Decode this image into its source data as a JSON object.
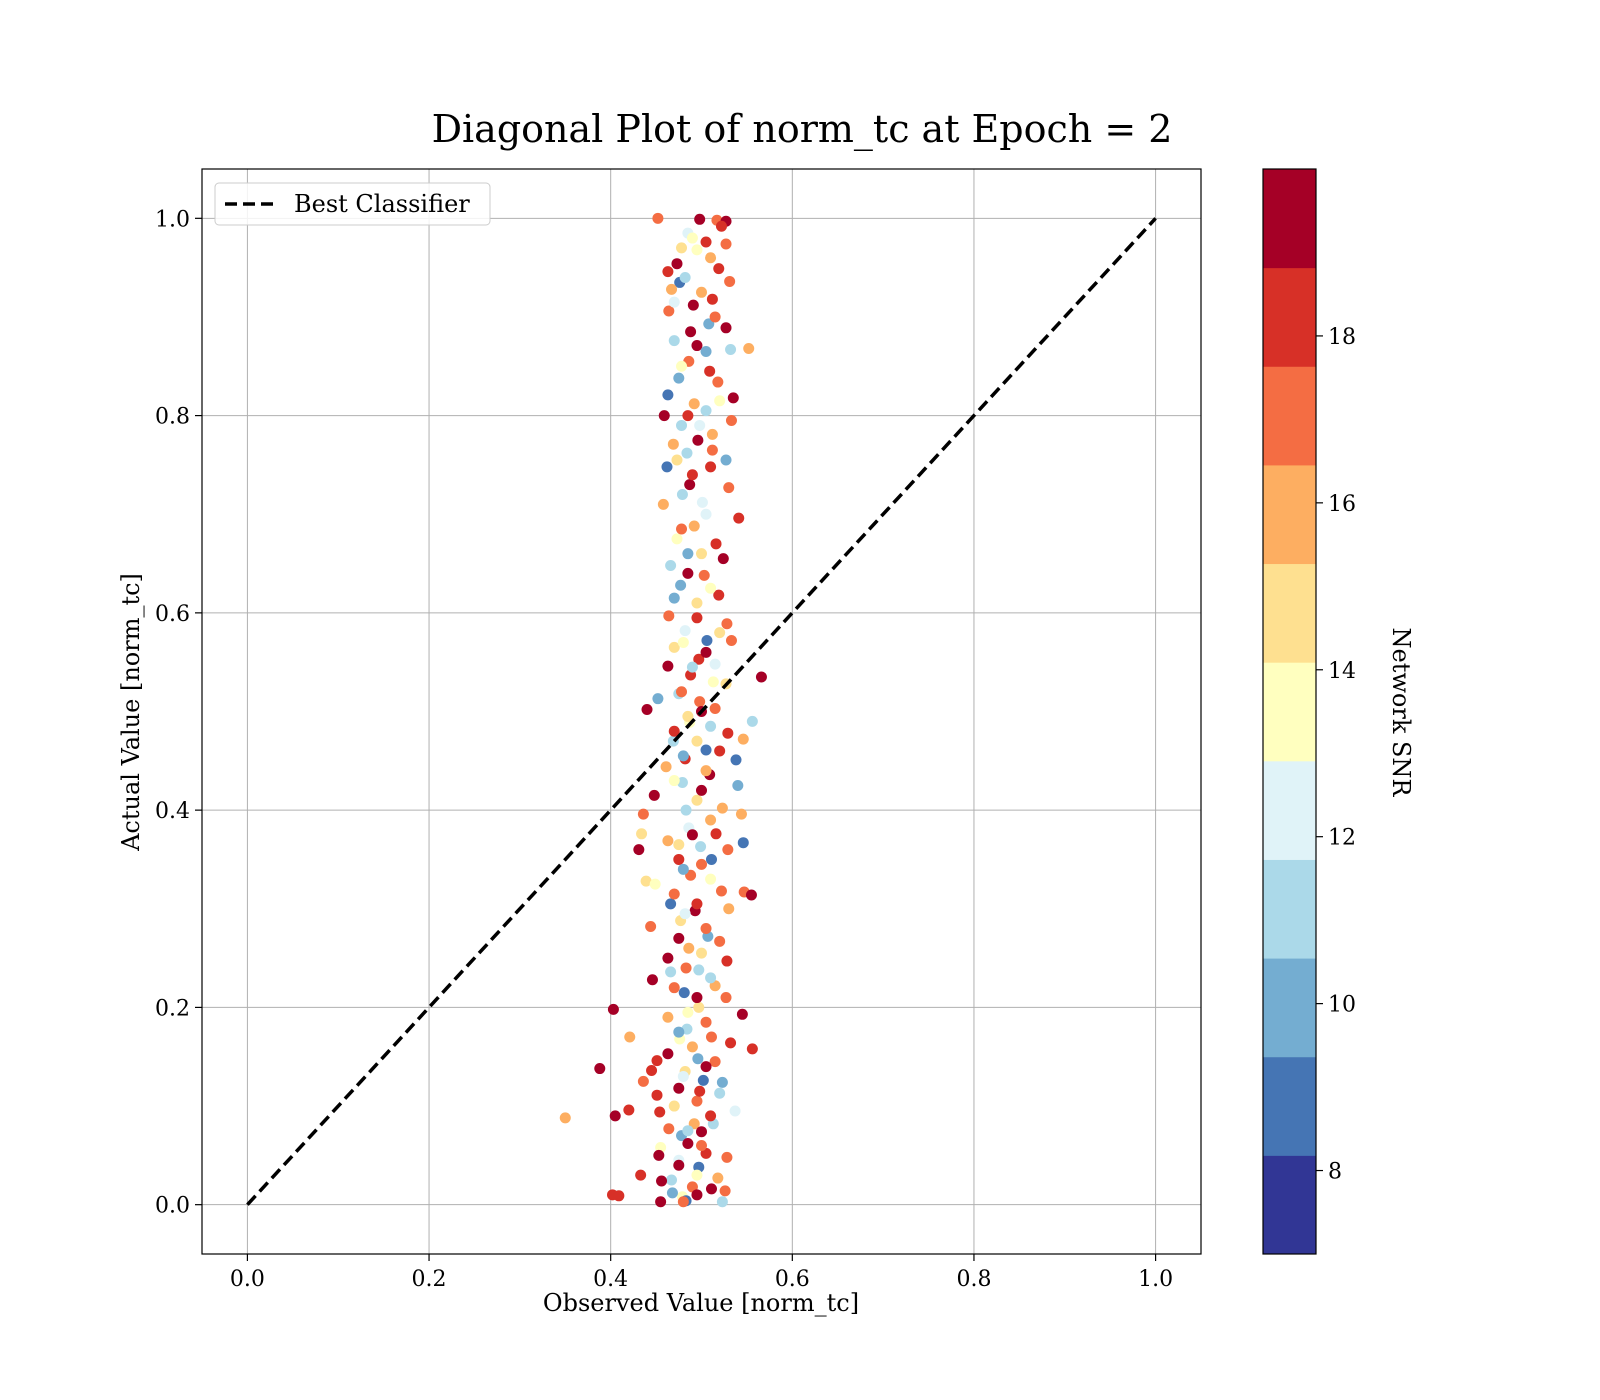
{
  "chart_data": {
    "type": "scatter",
    "title": "Diagonal Plot of norm_tc at Epoch = 2",
    "xlabel": "Observed Value [norm_tc]",
    "ylabel": "Actual Value [norm_tc]",
    "xlim": [
      -0.05,
      1.05
    ],
    "ylim": [
      -0.05,
      1.05
    ],
    "xticks": [
      "0.0",
      "0.2",
      "0.4",
      "0.6",
      "0.8",
      "1.0"
    ],
    "yticks": [
      "0.0",
      "0.2",
      "0.4",
      "0.6",
      "0.8",
      "1.0"
    ],
    "xtick_values": [
      0,
      0.2,
      0.4,
      0.6,
      0.8,
      1.0
    ],
    "ytick_values": [
      0,
      0.2,
      0.4,
      0.6,
      0.8,
      1.0
    ],
    "grid": true,
    "legend": {
      "placement": "top-left",
      "entries": [
        {
          "label": "Best Classifier",
          "style": "dashed",
          "color": "#000000"
        }
      ]
    },
    "reference_line": {
      "x": [
        0,
        1
      ],
      "y": [
        0,
        1
      ]
    },
    "colorbar": {
      "label": "Network SNR",
      "range": [
        7,
        20
      ],
      "ticks": [
        "8",
        "10",
        "12",
        "14",
        "16",
        "18"
      ],
      "tick_values": [
        8,
        10,
        12,
        14,
        16,
        18
      ],
      "colors": [
        "#313695",
        "#4575b4",
        "#74add1",
        "#abd9e9",
        "#e0f3f8",
        "#ffffbf",
        "#fee090",
        "#fdae61",
        "#f46d43",
        "#d73027",
        "#a50026"
      ]
    },
    "points": [
      [
        0.452,
        1.0,
        17.5
      ],
      [
        0.498,
        0.999,
        19.2
      ],
      [
        0.517,
        0.998,
        17.2
      ],
      [
        0.527,
        0.997,
        19.4
      ],
      [
        0.522,
        0.992,
        18.1
      ],
      [
        0.485,
        0.985,
        11.8
      ],
      [
        0.505,
        0.976,
        18.6
      ],
      [
        0.527,
        0.974,
        17.6
      ],
      [
        0.495,
        0.968,
        13.2
      ],
      [
        0.473,
        0.954,
        19.3
      ],
      [
        0.519,
        0.949,
        17.8
      ],
      [
        0.463,
        0.946,
        18.5
      ],
      [
        0.531,
        0.936,
        16.8
      ],
      [
        0.476,
        0.935,
        8.6
      ],
      [
        0.467,
        0.928,
        15.3
      ],
      [
        0.512,
        0.918,
        17.9
      ],
      [
        0.491,
        0.912,
        19.5
      ],
      [
        0.464,
        0.906,
        17.3
      ],
      [
        0.508,
        0.893,
        10.4
      ],
      [
        0.527,
        0.889,
        19.1
      ],
      [
        0.47,
        0.876,
        10.8
      ],
      [
        0.495,
        0.871,
        19.7
      ],
      [
        0.532,
        0.867,
        11.2
      ],
      [
        0.552,
        0.868,
        15.6
      ],
      [
        0.486,
        0.855,
        17.3
      ],
      [
        0.509,
        0.845,
        18.6
      ],
      [
        0.475,
        0.838,
        9.9
      ],
      [
        0.518,
        0.834,
        17.2
      ],
      [
        0.463,
        0.821,
        8.4
      ],
      [
        0.535,
        0.818,
        19.5
      ],
      [
        0.492,
        0.812,
        16.4
      ],
      [
        0.459,
        0.8,
        19.8
      ],
      [
        0.505,
        0.805,
        10.8
      ],
      [
        0.533,
        0.795,
        17.5
      ],
      [
        0.478,
        0.79,
        10.9
      ],
      [
        0.512,
        0.781,
        15.7
      ],
      [
        0.496,
        0.775,
        18.9
      ],
      [
        0.469,
        0.771,
        16.1
      ],
      [
        0.484,
        0.762,
        11.7
      ],
      [
        0.527,
        0.755,
        10.4
      ],
      [
        0.462,
        0.748,
        9.2
      ],
      [
        0.51,
        0.748,
        18.2
      ],
      [
        0.487,
        0.73,
        19.4
      ],
      [
        0.53,
        0.727,
        17.2
      ],
      [
        0.479,
        0.72,
        11.5
      ],
      [
        0.458,
        0.71,
        15.4
      ],
      [
        0.501,
        0.712,
        12.7
      ],
      [
        0.541,
        0.696,
        17.7
      ],
      [
        0.492,
        0.688,
        16.3
      ],
      [
        0.473,
        0.675,
        13.8
      ],
      [
        0.516,
        0.67,
        18.1
      ],
      [
        0.485,
        0.66,
        9.7
      ],
      [
        0.524,
        0.655,
        19.3
      ],
      [
        0.466,
        0.648,
        11.6
      ],
      [
        0.503,
        0.638,
        16.5
      ],
      [
        0.477,
        0.628,
        10.3
      ],
      [
        0.519,
        0.618,
        18.4
      ],
      [
        0.495,
        0.61,
        14.1
      ],
      [
        0.464,
        0.597,
        17.6
      ],
      [
        0.528,
        0.589,
        17.0
      ],
      [
        0.482,
        0.582,
        12.5
      ],
      [
        0.506,
        0.572,
        9.3
      ],
      [
        0.533,
        0.572,
        16.6
      ],
      [
        0.47,
        0.565,
        15.0
      ],
      [
        0.497,
        0.553,
        18.7
      ],
      [
        0.515,
        0.548,
        11.9
      ],
      [
        0.463,
        0.546,
        19.2
      ],
      [
        0.488,
        0.537,
        17.8
      ],
      [
        0.566,
        0.535,
        19.4
      ],
      [
        0.527,
        0.528,
        14.6
      ],
      [
        0.475,
        0.518,
        10.7
      ],
      [
        0.498,
        0.51,
        16.5
      ],
      [
        0.452,
        0.513,
        10.3
      ],
      [
        0.44,
        0.502,
        19.8
      ],
      [
        0.515,
        0.503,
        17.1
      ],
      [
        0.556,
        0.49,
        11.4
      ],
      [
        0.487,
        0.489,
        13.5
      ],
      [
        0.529,
        0.478,
        17.9
      ],
      [
        0.469,
        0.47,
        10.6
      ],
      [
        0.546,
        0.472,
        15.9
      ],
      [
        0.505,
        0.461,
        9.1
      ],
      [
        0.482,
        0.452,
        18.3
      ],
      [
        0.538,
        0.451,
        8.6
      ],
      [
        0.461,
        0.444,
        16.4
      ],
      [
        0.509,
        0.436,
        19.1
      ],
      [
        0.479,
        0.428,
        11.6
      ],
      [
        0.54,
        0.425,
        10.4
      ],
      [
        0.448,
        0.415,
        19.6
      ],
      [
        0.495,
        0.41,
        14.3
      ],
      [
        0.523,
        0.402,
        15.9
      ],
      [
        0.436,
        0.396,
        17.0
      ],
      [
        0.544,
        0.396,
        16.4
      ],
      [
        0.486,
        0.382,
        12.3
      ],
      [
        0.516,
        0.376,
        18.8
      ],
      [
        0.434,
        0.376,
        14.4
      ],
      [
        0.463,
        0.369,
        16.0
      ],
      [
        0.499,
        0.363,
        10.9
      ],
      [
        0.529,
        0.36,
        17.1
      ],
      [
        0.546,
        0.367,
        8.8
      ],
      [
        0.431,
        0.36,
        19.5
      ],
      [
        0.475,
        0.35,
        18.6
      ],
      [
        0.511,
        0.35,
        9.2
      ],
      [
        0.439,
        0.328,
        14.8
      ],
      [
        0.488,
        0.334,
        17.3
      ],
      [
        0.449,
        0.325,
        13.9
      ],
      [
        0.522,
        0.318,
        16.7
      ],
      [
        0.547,
        0.317,
        17.5
      ],
      [
        0.555,
        0.314,
        19.2
      ],
      [
        0.466,
        0.305,
        8.7
      ],
      [
        0.493,
        0.298,
        19.0
      ],
      [
        0.53,
        0.3,
        15.5
      ],
      [
        0.477,
        0.288,
        14.2
      ],
      [
        0.444,
        0.282,
        16.9
      ],
      [
        0.507,
        0.272,
        9.5
      ],
      [
        0.52,
        0.267,
        17.3
      ],
      [
        0.486,
        0.26,
        15.7
      ],
      [
        0.463,
        0.25,
        19.2
      ],
      [
        0.528,
        0.247,
        17.8
      ],
      [
        0.497,
        0.238,
        10.6
      ],
      [
        0.466,
        0.236,
        11.4
      ],
      [
        0.446,
        0.228,
        19.4
      ],
      [
        0.515,
        0.222,
        16.3
      ],
      [
        0.481,
        0.215,
        8.9
      ],
      [
        0.527,
        0.21,
        17.5
      ],
      [
        0.497,
        0.2,
        15.1
      ],
      [
        0.403,
        0.198,
        19.6
      ],
      [
        0.545,
        0.193,
        19.1
      ],
      [
        0.463,
        0.19,
        16.2
      ],
      [
        0.484,
        0.178,
        11.0
      ],
      [
        0.421,
        0.17,
        15.5
      ],
      [
        0.511,
        0.17,
        17.0
      ],
      [
        0.476,
        0.168,
        13.6
      ],
      [
        0.532,
        0.164,
        18.4
      ],
      [
        0.556,
        0.158,
        17.7
      ],
      [
        0.463,
        0.153,
        19.3
      ],
      [
        0.496,
        0.148,
        10.2
      ],
      [
        0.451,
        0.146,
        17.8
      ],
      [
        0.515,
        0.145,
        16.8
      ],
      [
        0.388,
        0.138,
        19.7
      ],
      [
        0.482,
        0.135,
        14.4
      ],
      [
        0.445,
        0.136,
        18.1
      ],
      [
        0.502,
        0.126,
        8.9
      ],
      [
        0.436,
        0.125,
        16.6
      ],
      [
        0.523,
        0.124,
        10.3
      ],
      [
        0.475,
        0.118,
        19.0
      ],
      [
        0.52,
        0.113,
        11.5
      ],
      [
        0.451,
        0.111,
        18.6
      ],
      [
        0.495,
        0.105,
        17.4
      ],
      [
        0.537,
        0.095,
        12.6
      ],
      [
        0.42,
        0.096,
        18.2
      ],
      [
        0.454,
        0.094,
        18.8
      ],
      [
        0.405,
        0.09,
        19.4
      ],
      [
        0.35,
        0.088,
        15.3
      ],
      [
        0.492,
        0.082,
        16.0
      ],
      [
        0.464,
        0.077,
        17.4
      ],
      [
        0.513,
        0.082,
        11.2
      ],
      [
        0.5,
        0.074,
        19.5
      ],
      [
        0.478,
        0.07,
        10.1
      ],
      [
        0.455,
        0.058,
        13.2
      ],
      [
        0.485,
        0.062,
        19.1
      ],
      [
        0.505,
        0.052,
        17.7
      ],
      [
        0.453,
        0.05,
        19.2
      ],
      [
        0.528,
        0.048,
        16.8
      ],
      [
        0.475,
        0.045,
        12.0
      ],
      [
        0.497,
        0.038,
        9.3
      ],
      [
        0.433,
        0.03,
        18.6
      ],
      [
        0.518,
        0.027,
        15.9
      ],
      [
        0.467,
        0.025,
        10.7
      ],
      [
        0.456,
        0.024,
        19.5
      ],
      [
        0.49,
        0.018,
        17.6
      ],
      [
        0.511,
        0.016,
        19.0
      ],
      [
        0.526,
        0.014,
        17.3
      ],
      [
        0.402,
        0.01,
        17.9
      ],
      [
        0.409,
        0.009,
        18.8
      ],
      [
        0.479,
        0.008,
        13.4
      ],
      [
        0.495,
        0.01,
        19.2
      ],
      [
        0.468,
        0.012,
        10.2
      ],
      [
        0.455,
        0.003,
        19.4
      ],
      [
        0.483,
        0.004,
        8.3
      ],
      [
        0.523,
        0.003,
        11.2
      ],
      [
        0.48,
        0.003,
        16.6
      ],
      [
        0.49,
        0.98,
        13.0
      ],
      [
        0.478,
        0.97,
        14.5
      ],
      [
        0.51,
        0.96,
        16.3
      ],
      [
        0.482,
        0.94,
        11.3
      ],
      [
        0.5,
        0.925,
        15.6
      ],
      [
        0.47,
        0.915,
        12.9
      ],
      [
        0.515,
        0.9,
        17.0
      ],
      [
        0.488,
        0.885,
        19.0
      ],
      [
        0.505,
        0.865,
        9.6
      ],
      [
        0.478,
        0.85,
        14.0
      ],
      [
        0.52,
        0.815,
        13.3
      ],
      [
        0.485,
        0.8,
        18.0
      ],
      [
        0.498,
        0.79,
        12.2
      ],
      [
        0.512,
        0.765,
        17.6
      ],
      [
        0.473,
        0.755,
        14.9
      ],
      [
        0.49,
        0.74,
        18.4
      ],
      [
        0.505,
        0.7,
        12.0
      ],
      [
        0.478,
        0.685,
        17.0
      ],
      [
        0.5,
        0.66,
        14.2
      ],
      [
        0.485,
        0.64,
        19.0
      ],
      [
        0.51,
        0.625,
        13.6
      ],
      [
        0.47,
        0.615,
        9.8
      ],
      [
        0.495,
        0.595,
        17.9
      ],
      [
        0.52,
        0.58,
        15.2
      ],
      [
        0.48,
        0.57,
        13.1
      ],
      [
        0.505,
        0.56,
        19.3
      ],
      [
        0.49,
        0.545,
        11.7
      ],
      [
        0.513,
        0.53,
        13.9
      ],
      [
        0.478,
        0.52,
        17.5
      ],
      [
        0.5,
        0.5,
        19.0
      ],
      [
        0.485,
        0.495,
        15.0
      ],
      [
        0.51,
        0.485,
        11.0
      ],
      [
        0.47,
        0.48,
        18.2
      ],
      [
        0.495,
        0.47,
        14.8
      ],
      [
        0.52,
        0.46,
        17.7
      ],
      [
        0.48,
        0.455,
        9.9
      ],
      [
        0.505,
        0.44,
        16.2
      ],
      [
        0.47,
        0.43,
        13.0
      ],
      [
        0.5,
        0.42,
        18.9
      ],
      [
        0.483,
        0.4,
        11.5
      ],
      [
        0.51,
        0.39,
        15.8
      ],
      [
        0.49,
        0.375,
        19.2
      ],
      [
        0.475,
        0.365,
        14.3
      ],
      [
        0.5,
        0.345,
        17.1
      ],
      [
        0.48,
        0.34,
        10.5
      ],
      [
        0.51,
        0.33,
        13.7
      ],
      [
        0.47,
        0.315,
        16.5
      ],
      [
        0.495,
        0.305,
        18.6
      ],
      [
        0.482,
        0.295,
        12.4
      ],
      [
        0.505,
        0.28,
        17.0
      ],
      [
        0.475,
        0.27,
        19.0
      ],
      [
        0.5,
        0.255,
        14.5
      ],
      [
        0.483,
        0.24,
        17.6
      ],
      [
        0.51,
        0.23,
        11.2
      ],
      [
        0.47,
        0.22,
        16.9
      ],
      [
        0.495,
        0.21,
        19.4
      ],
      [
        0.485,
        0.195,
        13.3
      ],
      [
        0.505,
        0.185,
        17.2
      ],
      [
        0.475,
        0.175,
        10.0
      ],
      [
        0.49,
        0.16,
        15.4
      ],
      [
        0.505,
        0.14,
        19.0
      ],
      [
        0.48,
        0.13,
        12.8
      ],
      [
        0.498,
        0.115,
        17.8
      ],
      [
        0.47,
        0.1,
        14.4
      ],
      [
        0.51,
        0.09,
        18.3
      ],
      [
        0.485,
        0.075,
        11.6
      ],
      [
        0.5,
        0.06,
        16.7
      ],
      [
        0.475,
        0.04,
        19.3
      ],
      [
        0.495,
        0.03,
        13.8
      ]
    ]
  }
}
